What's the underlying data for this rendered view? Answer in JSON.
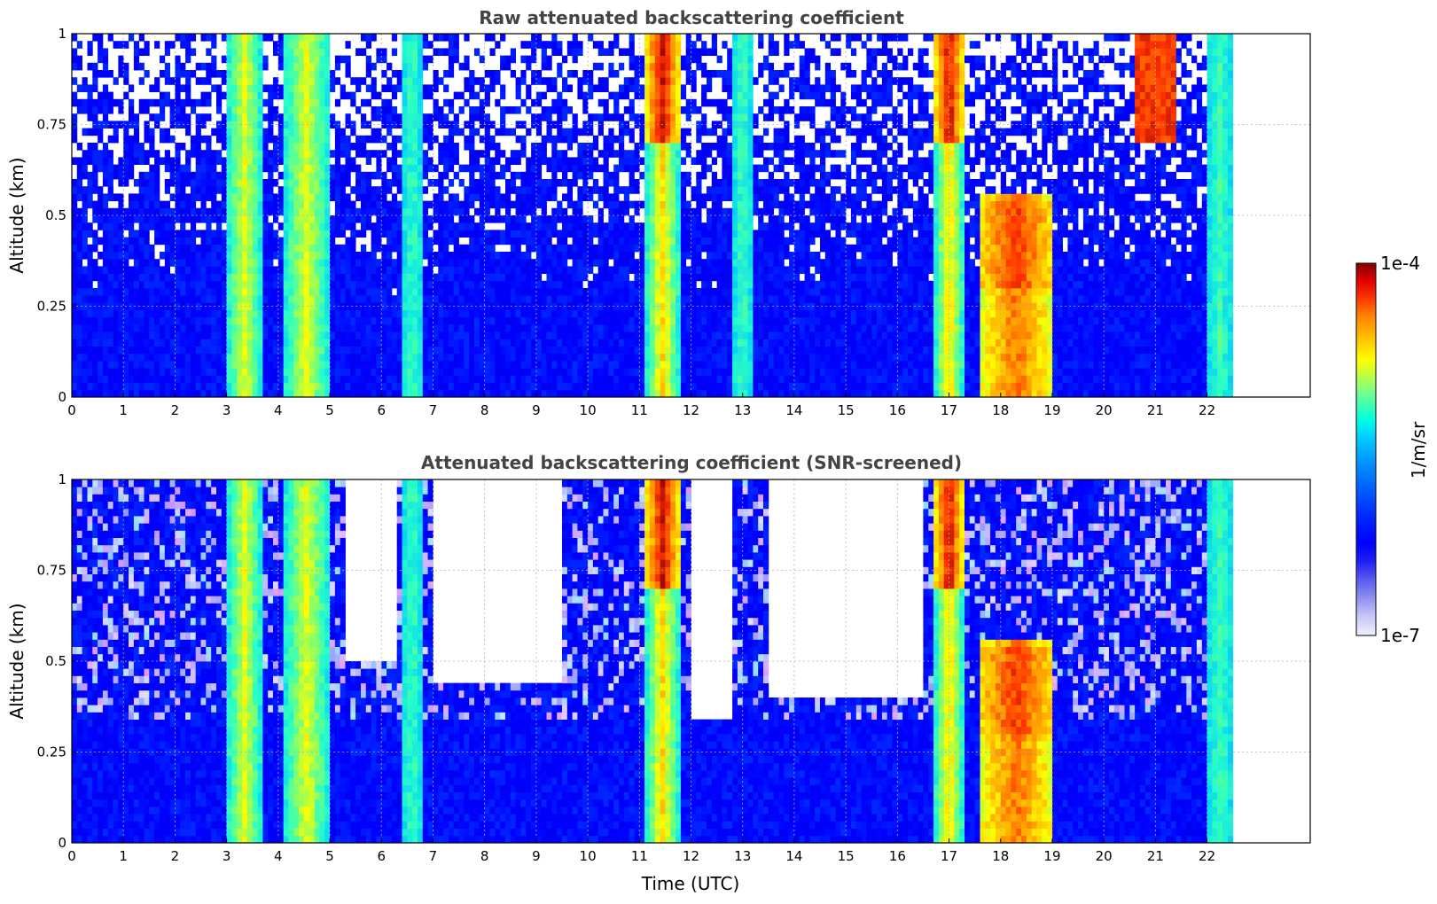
{
  "chart_data": [
    {
      "type": "heatmap",
      "title": "Raw attenuated backscattering coefficient",
      "xlabel": "",
      "ylabel": "Altitude (km)",
      "xlim": [
        0,
        24
      ],
      "ylim": [
        0,
        1
      ],
      "data_end_x": 22.5,
      "x_ticks": [
        "0",
        "1",
        "2",
        "3",
        "4",
        "5",
        "6",
        "7",
        "8",
        "9",
        "10",
        "11",
        "12",
        "13",
        "14",
        "15",
        "16",
        "17",
        "18",
        "19",
        "20",
        "21",
        "22"
      ],
      "y_ticks": [
        "0",
        "0.25",
        "0.5",
        "0.75",
        "1"
      ],
      "grid": true,
      "background": "sparse blue noise increasing with altitude, solid blue below 0.3 km",
      "features": [
        {
          "x": [
            3.0,
            3.7
          ],
          "ylim": [
            0.0,
            1.0
          ],
          "level": "cyan-yellow"
        },
        {
          "x": [
            4.1,
            5.0
          ],
          "ylim": [
            0.0,
            1.0
          ],
          "level": "cyan-yellow"
        },
        {
          "x": [
            6.4,
            6.8
          ],
          "ylim": [
            0.0,
            1.0
          ],
          "level": "cyan"
        },
        {
          "x": [
            11.1,
            11.8
          ],
          "ylim": [
            0.0,
            1.0
          ],
          "level": "cyan-red"
        },
        {
          "x": [
            12.8,
            13.2
          ],
          "ylim": [
            0.0,
            1.0
          ],
          "level": "cyan"
        },
        {
          "x": [
            16.7,
            17.3
          ],
          "ylim": [
            0.0,
            1.0
          ],
          "level": "cyan-red"
        },
        {
          "x": [
            17.6,
            19.0
          ],
          "ylim": [
            0.0,
            0.55
          ],
          "level": "yellow-red"
        },
        {
          "x": [
            20.6,
            21.4
          ],
          "ylim": [
            0.7,
            1.0
          ],
          "level": "red"
        },
        {
          "x": [
            22.0,
            22.5
          ],
          "ylim": [
            0.0,
            1.0
          ],
          "level": "cyan"
        }
      ]
    },
    {
      "type": "heatmap",
      "title": "Attenuated backscattering coefficient (SNR-screened)",
      "xlabel": "Time (UTC)",
      "ylabel": "Altitude (km)",
      "xlim": [
        0,
        24
      ],
      "ylim": [
        0,
        1
      ],
      "data_end_x": 22.5,
      "x_ticks": [
        "0",
        "1",
        "2",
        "3",
        "4",
        "5",
        "6",
        "7",
        "8",
        "9",
        "10",
        "11",
        "12",
        "13",
        "14",
        "15",
        "16",
        "17",
        "18",
        "19",
        "20",
        "21",
        "22"
      ],
      "y_ticks": [
        "0",
        "0.25",
        "0.5",
        "0.75",
        "1"
      ],
      "grid": true,
      "screened_out_regions": [
        {
          "x": [
            5.3,
            6.3
          ],
          "ylim": [
            0.5,
            1.0
          ]
        },
        {
          "x": [
            7.0,
            9.5
          ],
          "ylim": [
            0.45,
            1.0
          ]
        },
        {
          "x": [
            12.0,
            12.8
          ],
          "ylim": [
            0.35,
            1.0
          ]
        },
        {
          "x": [
            13.5,
            16.5
          ],
          "ylim": [
            0.4,
            1.0
          ]
        }
      ],
      "features": [
        {
          "x": [
            3.0,
            3.7
          ],
          "ylim": [
            0.0,
            1.0
          ],
          "level": "cyan-yellow"
        },
        {
          "x": [
            4.1,
            5.0
          ],
          "ylim": [
            0.0,
            1.0
          ],
          "level": "cyan-yellow"
        },
        {
          "x": [
            6.4,
            6.8
          ],
          "ylim": [
            0.0,
            1.0
          ],
          "level": "cyan"
        },
        {
          "x": [
            11.1,
            11.8
          ],
          "ylim": [
            0.0,
            1.0
          ],
          "level": "cyan-red"
        },
        {
          "x": [
            16.7,
            17.3
          ],
          "ylim": [
            0.0,
            1.0
          ],
          "level": "cyan-red"
        },
        {
          "x": [
            17.6,
            19.0
          ],
          "ylim": [
            0.0,
            0.55
          ],
          "level": "yellow-red"
        },
        {
          "x": [
            22.0,
            22.5
          ],
          "ylim": [
            0.0,
            1.0
          ],
          "level": "cyan"
        }
      ]
    }
  ],
  "colorbar": {
    "label": "1/m/sr",
    "max_label": "1e-4",
    "min_label": "1e-7",
    "colors": [
      "#f0f0ff",
      "#c8c8f5",
      "#9090f0",
      "#5a5af0",
      "#1e1ef5",
      "#0000ff",
      "#0028ff",
      "#0064ff",
      "#00a0ff",
      "#00d4ff",
      "#00ffe0",
      "#40ffb0",
      "#80ff80",
      "#c0ff40",
      "#ffff00",
      "#ffc000",
      "#ff8000",
      "#ff4000",
      "#e60000",
      "#a00000",
      "#800000"
    ]
  }
}
